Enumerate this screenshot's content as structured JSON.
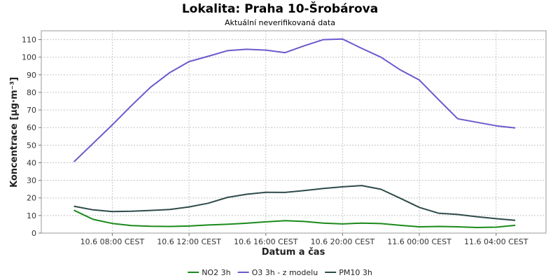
{
  "chart_data": {
    "type": "line",
    "title": "Lokalita: Praha 10-Šrobárova",
    "subtitle": "Aktuální neverifikovaná data",
    "xlabel": "Datum a čas",
    "ylabel": "Koncentrace [µg·m⁻³]",
    "ylim": [
      0,
      115
    ],
    "yticks": [
      0,
      10,
      20,
      30,
      40,
      50,
      60,
      70,
      80,
      90,
      100,
      110
    ],
    "x_start_hour": 6,
    "x_step_hours": 1,
    "xlim_hours": [
      4.3,
      30.6
    ],
    "xticks": [
      {
        "hour": 8,
        "label": "10.6 08:00 CEST"
      },
      {
        "hour": 12,
        "label": "10.6 12:00 CEST"
      },
      {
        "hour": 16,
        "label": "10.6 16:00 CEST"
      },
      {
        "hour": 20,
        "label": "10.6 20:00 CEST"
      },
      {
        "hour": 24,
        "label": "11.6 00:00 CEST"
      },
      {
        "hour": 28,
        "label": "11.6 04:00 CEST"
      }
    ],
    "grid": true,
    "legend_position": "bottom",
    "series": [
      {
        "name": "NO2 3h",
        "color": "#1b8a1b",
        "values": [
          13.0,
          7.8,
          5.5,
          4.3,
          3.9,
          3.8,
          4.0,
          4.6,
          5.0,
          5.6,
          6.4,
          7.1,
          6.6,
          5.7,
          5.2,
          5.7,
          5.4,
          4.4,
          3.6,
          3.8,
          3.6,
          3.2,
          3.4,
          4.4
        ]
      },
      {
        "name": "O3 3h - z modelu",
        "color": "#6a5acd",
        "values": [
          40.5,
          51.0,
          61.5,
          72.5,
          83.0,
          91.3,
          97.5,
          100.5,
          103.7,
          104.5,
          104.0,
          102.6,
          106.5,
          110.0,
          110.3,
          105.0,
          100.0,
          92.8,
          87.0,
          75.9,
          65.0,
          63.0,
          61.0,
          59.8
        ]
      },
      {
        "name": "PM10 3h",
        "color": "#2e4a4a",
        "values": [
          15.3,
          13.2,
          12.2,
          12.4,
          12.9,
          13.4,
          14.9,
          17.0,
          20.3,
          22.1,
          23.2,
          23.1,
          24.2,
          25.4,
          26.3,
          27.0,
          24.9,
          19.8,
          14.6,
          11.3,
          10.6,
          9.3,
          8.2,
          7.3
        ]
      }
    ]
  }
}
